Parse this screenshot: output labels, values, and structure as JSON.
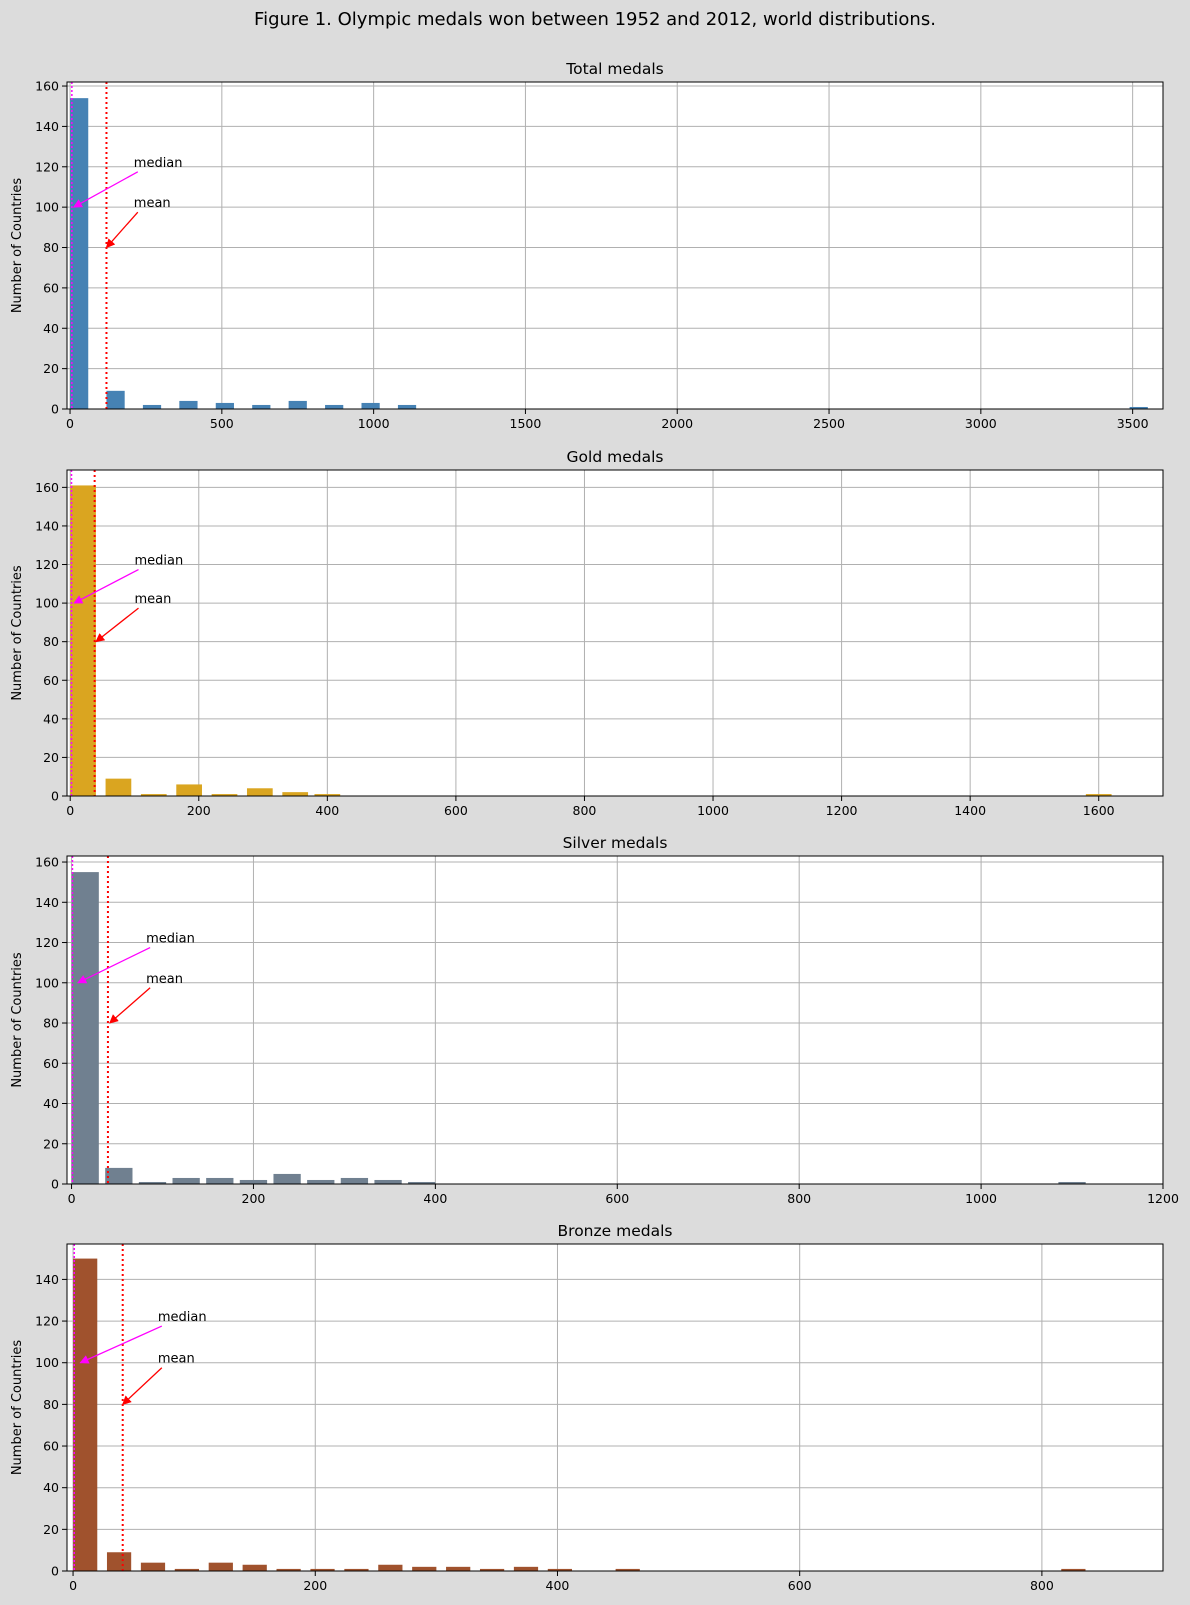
{
  "figure": {
    "title": "Figure 1. Olympic medals won between 1952 and 2012, world distributions.",
    "background_color": "#dcdcdc"
  },
  "chart_data": [
    {
      "type": "bar",
      "title": "Total medals",
      "ylabel": "Number of Countries",
      "xlabel": "",
      "color": "#4682b4",
      "xlim": [
        -10,
        3600
      ],
      "ylim": [
        0,
        162
      ],
      "xticks": [
        0,
        500,
        1000,
        1500,
        2000,
        2500,
        3000,
        3500
      ],
      "yticks": [
        0,
        20,
        40,
        60,
        80,
        100,
        120,
        140,
        160
      ],
      "grid": true,
      "bin_width": 70,
      "bins": [
        {
          "x0": 0,
          "x1": 60,
          "count": 154
        },
        {
          "x0": 120,
          "x1": 180,
          "count": 9
        },
        {
          "x0": 240,
          "x1": 300,
          "count": 2
        },
        {
          "x0": 360,
          "x1": 420,
          "count": 4
        },
        {
          "x0": 480,
          "x1": 540,
          "count": 3
        },
        {
          "x0": 600,
          "x1": 660,
          "count": 2
        },
        {
          "x0": 720,
          "x1": 780,
          "count": 4
        },
        {
          "x0": 840,
          "x1": 900,
          "count": 2
        },
        {
          "x0": 960,
          "x1": 1020,
          "count": 3
        },
        {
          "x0": 1080,
          "x1": 1140,
          "count": 2
        },
        {
          "x0": 3490,
          "x1": 3550,
          "count": 1
        }
      ],
      "median": 6,
      "mean": 120,
      "annotations": [
        {
          "label": "median",
          "text_x": 210,
          "text_y": 120,
          "arrow_x": 12,
          "arrow_y": 100,
          "color": "#ff00ff"
        },
        {
          "label": "mean",
          "text_x": 210,
          "text_y": 100,
          "arrow_x": 120,
          "arrow_y": 80,
          "color": "#ff0000"
        }
      ]
    },
    {
      "type": "bar",
      "title": "Gold medals",
      "ylabel": "Number of Countries",
      "xlabel": "",
      "color": "#daa520",
      "xlim": [
        -5,
        1700
      ],
      "ylim": [
        0,
        169
      ],
      "xticks": [
        0,
        200,
        400,
        600,
        800,
        1000,
        1200,
        1400,
        1600
      ],
      "yticks": [
        0,
        20,
        40,
        60,
        80,
        100,
        120,
        140,
        160
      ],
      "grid": true,
      "bins": [
        {
          "x0": 0,
          "x1": 40,
          "count": 161
        },
        {
          "x0": 55,
          "x1": 95,
          "count": 9
        },
        {
          "x0": 110,
          "x1": 150,
          "count": 1
        },
        {
          "x0": 165,
          "x1": 205,
          "count": 6
        },
        {
          "x0": 220,
          "x1": 260,
          "count": 1
        },
        {
          "x0": 275,
          "x1": 315,
          "count": 4
        },
        {
          "x0": 330,
          "x1": 370,
          "count": 2
        },
        {
          "x0": 380,
          "x1": 420,
          "count": 1
        },
        {
          "x0": 1580,
          "x1": 1620,
          "count": 1
        }
      ],
      "median": 2,
      "mean": 38,
      "annotations": [
        {
          "label": "median",
          "text_x": 100,
          "text_y": 120,
          "arrow_x": 6,
          "arrow_y": 100,
          "color": "#ff00ff"
        },
        {
          "label": "mean",
          "text_x": 100,
          "text_y": 100,
          "arrow_x": 40,
          "arrow_y": 80,
          "color": "#ff0000"
        }
      ]
    },
    {
      "type": "bar",
      "title": "Silver medals",
      "ylabel": "Number of Countries",
      "xlabel": "",
      "color": "#708090",
      "xlim": [
        -5,
        1200
      ],
      "ylim": [
        0,
        163
      ],
      "xticks": [
        0,
        200,
        400,
        600,
        800,
        1000,
        1200
      ],
      "yticks": [
        0,
        20,
        40,
        60,
        80,
        100,
        120,
        140,
        160
      ],
      "grid": true,
      "bins": [
        {
          "x0": 0,
          "x1": 30,
          "count": 155
        },
        {
          "x0": 37,
          "x1": 67,
          "count": 8
        },
        {
          "x0": 74,
          "x1": 104,
          "count": 1
        },
        {
          "x0": 111,
          "x1": 141,
          "count": 3
        },
        {
          "x0": 148,
          "x1": 178,
          "count": 3
        },
        {
          "x0": 185,
          "x1": 215,
          "count": 2
        },
        {
          "x0": 222,
          "x1": 252,
          "count": 5
        },
        {
          "x0": 259,
          "x1": 289,
          "count": 2
        },
        {
          "x0": 296,
          "x1": 326,
          "count": 3
        },
        {
          "x0": 333,
          "x1": 363,
          "count": 2
        },
        {
          "x0": 370,
          "x1": 400,
          "count": 1
        },
        {
          "x0": 1085,
          "x1": 1115,
          "count": 1
        }
      ],
      "median": 1,
      "mean": 40,
      "annotations": [
        {
          "label": "median",
          "text_x": 82,
          "text_y": 120,
          "arrow_x": 7,
          "arrow_y": 100,
          "color": "#ff00ff"
        },
        {
          "label": "mean",
          "text_x": 82,
          "text_y": 100,
          "arrow_x": 42,
          "arrow_y": 80,
          "color": "#ff0000"
        }
      ]
    },
    {
      "type": "bar",
      "title": "Bronze medals",
      "ylabel": "Number of Countries",
      "xlabel": "",
      "color": "#a0522d",
      "xlim": [
        -5,
        900
      ],
      "ylim": [
        0,
        157
      ],
      "xticks": [
        0,
        200,
        400,
        600,
        800
      ],
      "yticks": [
        0,
        20,
        40,
        60,
        80,
        100,
        120,
        140
      ],
      "grid": true,
      "bins": [
        {
          "x0": 0,
          "x1": 20,
          "count": 150
        },
        {
          "x0": 28,
          "x1": 48,
          "count": 9
        },
        {
          "x0": 56,
          "x1": 76,
          "count": 4
        },
        {
          "x0": 84,
          "x1": 104,
          "count": 1
        },
        {
          "x0": 112,
          "x1": 132,
          "count": 4
        },
        {
          "x0": 140,
          "x1": 160,
          "count": 3
        },
        {
          "x0": 168,
          "x1": 188,
          "count": 1
        },
        {
          "x0": 196,
          "x1": 216,
          "count": 1
        },
        {
          "x0": 224,
          "x1": 244,
          "count": 1
        },
        {
          "x0": 252,
          "x1": 272,
          "count": 3
        },
        {
          "x0": 280,
          "x1": 300,
          "count": 2
        },
        {
          "x0": 308,
          "x1": 328,
          "count": 2
        },
        {
          "x0": 336,
          "x1": 356,
          "count": 1
        },
        {
          "x0": 364,
          "x1": 384,
          "count": 2
        },
        {
          "x0": 392,
          "x1": 412,
          "count": 1
        },
        {
          "x0": 448,
          "x1": 468,
          "count": 1
        },
        {
          "x0": 816,
          "x1": 836,
          "count": 1
        }
      ],
      "median": 1,
      "mean": 41,
      "annotations": [
        {
          "label": "median",
          "text_x": 70,
          "text_y": 120,
          "arrow_x": 6,
          "arrow_y": 100,
          "color": "#ff00ff"
        },
        {
          "label": "mean",
          "text_x": 70,
          "text_y": 100,
          "arrow_x": 41,
          "arrow_y": 80,
          "color": "#ff0000"
        }
      ]
    }
  ]
}
